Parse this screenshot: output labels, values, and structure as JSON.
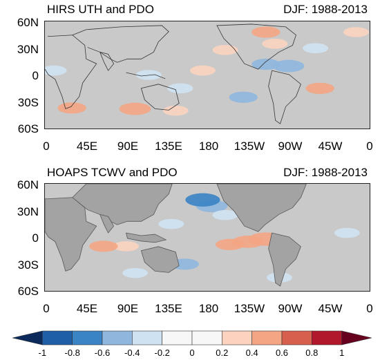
{
  "chart_data": [
    {
      "type": "heatmap",
      "title_left": "HIRS UTH and PDO",
      "title_right": "DJF: 1988-2013",
      "yticks": [
        "60N",
        "30N",
        "0",
        "30S",
        "60S"
      ],
      "xticks": [
        "0",
        "45E",
        "90E",
        "135E",
        "180",
        "135W",
        "90W",
        "45W",
        "0"
      ],
      "xlim": [
        0,
        360
      ],
      "ylim": [
        -60,
        60
      ],
      "fill_color": "#c8c8c8",
      "anomalies": [
        {
          "lon": 30,
          "lat": -37,
          "value": 0.4
        },
        {
          "lon": 100,
          "lat": -38,
          "value": 0.5
        },
        {
          "lon": 145,
          "lat": -40,
          "value": 0.3
        },
        {
          "lon": 200,
          "lat": 28,
          "value": 0.3
        },
        {
          "lon": 245,
          "lat": 48,
          "value": 0.4
        },
        {
          "lon": 255,
          "lat": 35,
          "value": 0.3
        },
        {
          "lon": 305,
          "lat": -15,
          "value": 0.4
        },
        {
          "lon": 345,
          "lat": 48,
          "value": 0.3
        },
        {
          "lon": 175,
          "lat": 5,
          "value": 0.3
        },
        {
          "lon": 270,
          "lat": 10,
          "value": -0.5
        },
        {
          "lon": 245,
          "lat": 12,
          "value": -0.4
        },
        {
          "lon": 115,
          "lat": 0,
          "value": -0.3
        },
        {
          "lon": 220,
          "lat": -25,
          "value": -0.4
        },
        {
          "lon": 150,
          "lat": -15,
          "value": -0.3
        },
        {
          "lon": 300,
          "lat": 30,
          "value": -0.3
        },
        {
          "lon": 10,
          "lat": 5,
          "value": -0.3
        }
      ]
    },
    {
      "type": "heatmap",
      "title_left": "HOAPS TCWV and PDO",
      "title_right": "DJF: 1988-2013",
      "yticks": [
        "60N",
        "30N",
        "0",
        "30S",
        "60S"
      ],
      "xticks": [
        "0",
        "45E",
        "90E",
        "135E",
        "180",
        "135W",
        "90W",
        "45W",
        "0"
      ],
      "xlim": [
        0,
        360
      ],
      "ylim": [
        -60,
        60
      ],
      "fill_color": "#c8c8c8",
      "land_color": "#a3a3a3",
      "anomalies": [
        {
          "lon": 185,
          "lat": 35,
          "value": -0.5
        },
        {
          "lon": 175,
          "lat": 42,
          "value": -0.6
        },
        {
          "lon": 200,
          "lat": 25,
          "value": -0.3
        },
        {
          "lon": 225,
          "lat": -5,
          "value": 0.5
        },
        {
          "lon": 245,
          "lat": -2,
          "value": 0.6
        },
        {
          "lon": 205,
          "lat": -8,
          "value": 0.4
        },
        {
          "lon": 230,
          "lat": 45,
          "value": 0.3
        },
        {
          "lon": 155,
          "lat": -30,
          "value": -0.4
        },
        {
          "lon": 90,
          "lat": -10,
          "value": 0.3
        },
        {
          "lon": 65,
          "lat": -10,
          "value": 0.4
        },
        {
          "lon": 140,
          "lat": 15,
          "value": -0.3
        },
        {
          "lon": 335,
          "lat": 5,
          "value": -0.3
        },
        {
          "lon": 100,
          "lat": -40,
          "value": -0.3
        },
        {
          "lon": 260,
          "lat": -45,
          "value": -0.3
        }
      ]
    }
  ],
  "colorbar": {
    "ticks": [
      "-1",
      "-0.8",
      "-0.6",
      "-0.4",
      "-0.2",
      "0",
      "0.2",
      "0.4",
      "0.6",
      "0.8",
      "1"
    ],
    "colors": [
      "#0b2a5b",
      "#1f5fa8",
      "#3a83c4",
      "#8fb7de",
      "#cfe2f2",
      "#f7f7f7",
      "#f7f7f7",
      "#fbd3bf",
      "#f4a583",
      "#d6604d",
      "#b2182b",
      "#67001f"
    ]
  }
}
